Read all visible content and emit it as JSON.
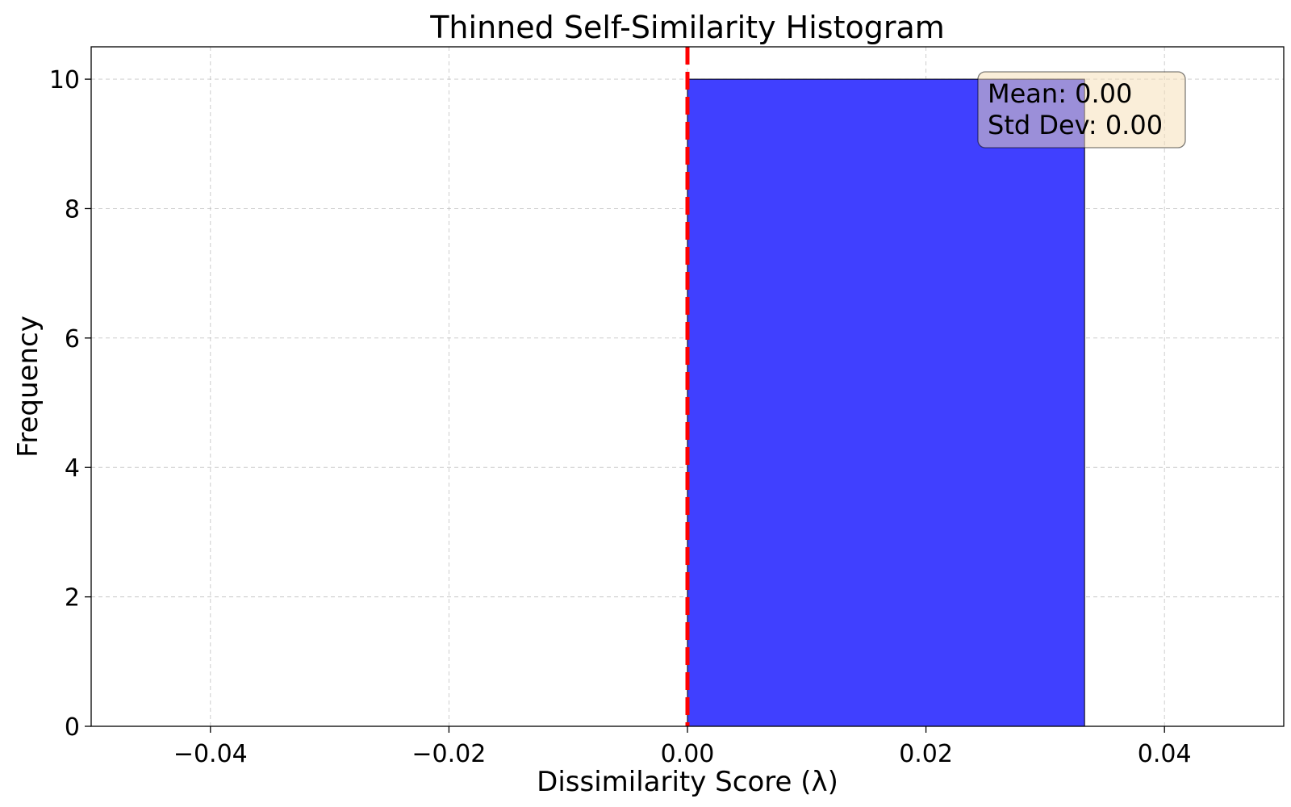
{
  "chart_data": {
    "type": "bar",
    "title": "Thinned Self-Similarity Histogram",
    "xlabel": "Dissimilarity Score (λ)",
    "ylabel": "Frequency",
    "xlim": [
      -0.05,
      0.05
    ],
    "ylim": [
      0,
      10.5
    ],
    "x_ticks": [
      -0.04,
      -0.02,
      0.0,
      0.02,
      0.04
    ],
    "x_tick_labels": [
      "−0.04",
      "−0.02",
      "0.00",
      "0.02",
      "0.04"
    ],
    "y_ticks": [
      0,
      2,
      4,
      6,
      8,
      10
    ],
    "y_tick_labels": [
      "0",
      "2",
      "4",
      "6",
      "8",
      "10"
    ],
    "grid": true,
    "bins": [
      {
        "x_start": 0.0,
        "x_end": 0.0333,
        "count": 10
      }
    ],
    "bar_color": "#4040ff",
    "mean_line": {
      "x": 0.0,
      "color": "#ff0000",
      "style": "dashed"
    },
    "stats_box": {
      "mean_text": "Mean: 0.00",
      "std_text": "Std Dev: 0.00",
      "background": "#f5deb3"
    }
  }
}
